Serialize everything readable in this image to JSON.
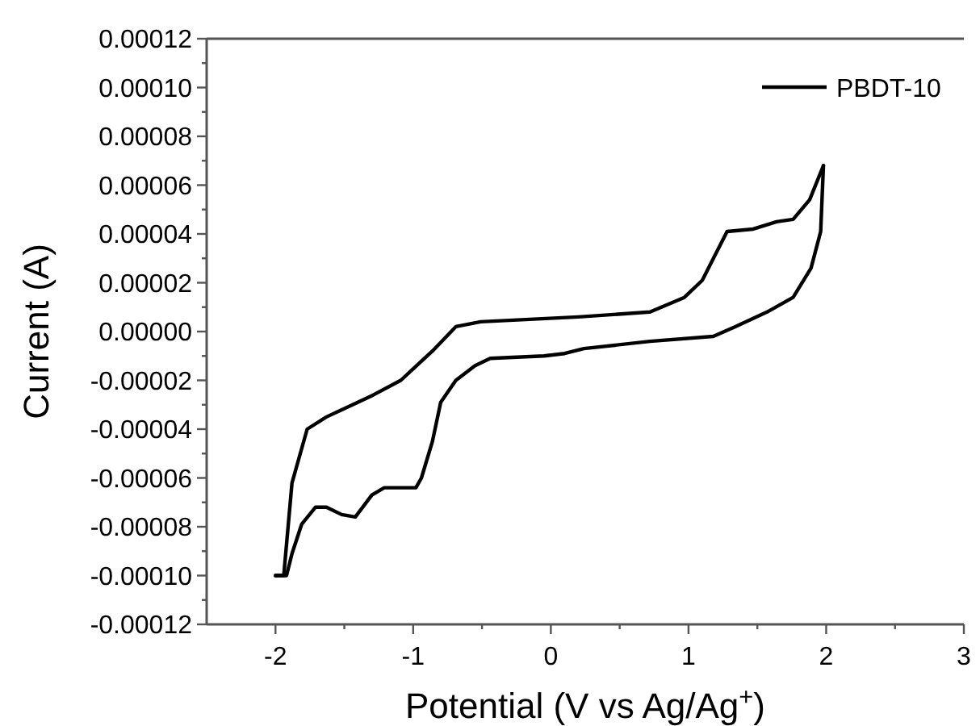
{
  "chart_data": {
    "type": "line",
    "xlabel": "Potential (V vs Ag/Ag$^{+}$)",
    "ylabel": "Current (A)",
    "xlim": [
      -2.5,
      3
    ],
    "ylim": [
      -0.00012,
      0.00012
    ],
    "xticks": [
      -2,
      {
        "value": -1.5,
        "label": null
      },
      -1,
      {
        "value": -0.5,
        "label": null
      },
      0,
      {
        "value": 0.5,
        "label": null
      },
      1,
      {
        "value": 1.5,
        "label": null
      },
      2,
      {
        "value": 2.5,
        "label": null
      },
      3
    ],
    "yticks": [
      {
        "value": -0.00012,
        "label": "-0.00012"
      },
      {
        "value": -0.00011,
        "label": null
      },
      {
        "value": -0.0001,
        "label": "-0.00010"
      },
      {
        "value": -9e-05,
        "label": null
      },
      {
        "value": -8e-05,
        "label": "-0.00008"
      },
      {
        "value": -7e-05,
        "label": null
      },
      {
        "value": -6e-05,
        "label": "-0.00006"
      },
      {
        "value": -5e-05,
        "label": null
      },
      {
        "value": -4e-05,
        "label": "-0.00004"
      },
      {
        "value": -3e-05,
        "label": null
      },
      {
        "value": -2e-05,
        "label": "-0.00002"
      },
      {
        "value": -1e-05,
        "label": null
      },
      {
        "value": 0,
        "label": "0.00000"
      },
      {
        "value": 1e-05,
        "label": null
      },
      {
        "value": 2e-05,
        "label": "0.00002"
      },
      {
        "value": 3e-05,
        "label": null
      },
      {
        "value": 4e-05,
        "label": "0.00004"
      },
      {
        "value": 5e-05,
        "label": null
      },
      {
        "value": 6e-05,
        "label": "0.00006"
      },
      {
        "value": 7e-05,
        "label": null
      },
      {
        "value": 8e-05,
        "label": "0.00008"
      },
      {
        "value": 9e-05,
        "label": null
      },
      {
        "value": 0.0001,
        "label": "0.00010"
      },
      {
        "value": 0.00011,
        "label": null
      },
      {
        "value": 0.00012,
        "label": "0.00012"
      }
    ],
    "legend": "top right",
    "grid": false,
    "line_style": "solid",
    "series": [
      {
        "name": "PBDT-10",
        "color": "#000000",
        "x": [
          -2.0,
          -1.94,
          -1.88,
          -1.77,
          -1.63,
          -1.44,
          -1.29,
          -1.09,
          -0.86,
          -0.69,
          -0.51,
          0.2,
          0.72,
          0.97,
          1.1,
          1.28,
          1.47,
          1.64,
          1.76,
          1.88,
          1.98
        ],
        "values": [
          -0.0001,
          -0.0001,
          -6.2e-05,
          -4e-05,
          -3.5e-05,
          -3e-05,
          -2.6e-05,
          -2e-05,
          -8e-06,
          2e-06,
          4e-06,
          6e-06,
          8e-06,
          1.4e-05,
          2.1e-05,
          4.1e-05,
          4.2e-05,
          4.5e-05,
          4.6e-05,
          5.4e-05,
          6.8e-05
        ]
      },
      {
        "color": "#000000",
        "x": [
          -2.0,
          -1.92,
          -1.88,
          -1.81,
          -1.71,
          -1.63,
          -1.52,
          -1.42,
          -1.3,
          -1.21,
          -0.98,
          -0.94,
          -0.86,
          -0.8,
          -0.69,
          -0.55,
          -0.44,
          -0.05,
          0.1,
          0.24,
          0.72,
          1.18,
          1.34,
          1.57,
          1.76,
          1.89,
          1.96,
          1.98
        ],
        "values": [
          -0.0001,
          -0.0001,
          -9.1e-05,
          -7.9e-05,
          -7.2e-05,
          -7.2e-05,
          -7.5e-05,
          -7.6e-05,
          -6.7e-05,
          -6.4e-05,
          -6.4e-05,
          -6e-05,
          -4.5e-05,
          -2.9e-05,
          -2e-05,
          -1.4e-05,
          -1.1e-05,
          -1e-05,
          -9e-06,
          -7e-06,
          -4e-06,
          -2e-06,
          2e-06,
          8e-06,
          1.4e-05,
          2.6e-05,
          4.1e-05,
          6.8e-05
        ]
      }
    ]
  }
}
